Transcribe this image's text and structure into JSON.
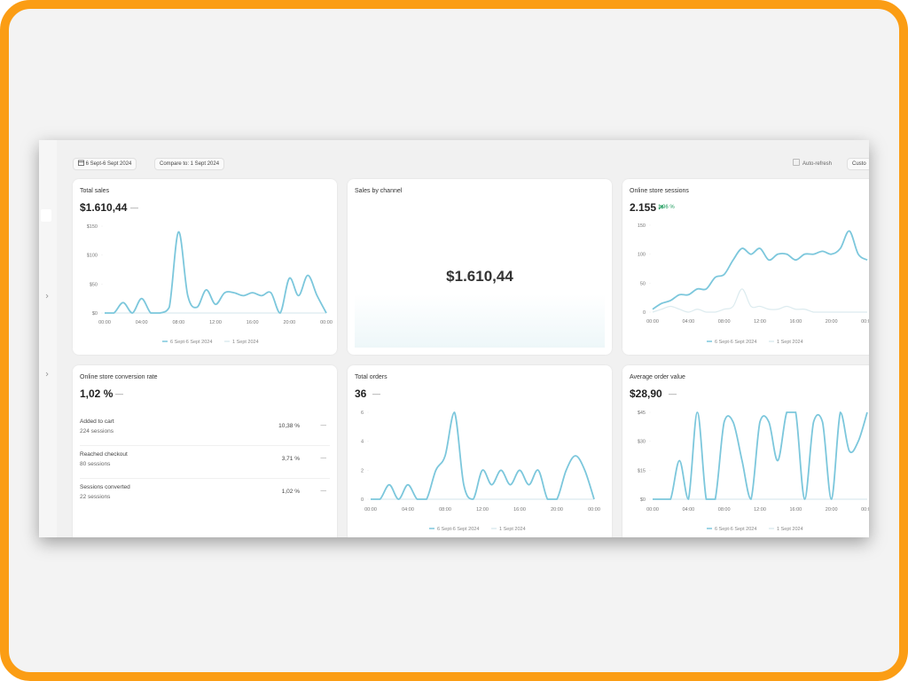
{
  "toolbar": {
    "date_range": "6 Sept-6 Sept 2024",
    "compare": "Compare to: 1 Sept 2024",
    "auto_refresh": "Auto-refresh",
    "custom": "Custo"
  },
  "cards": [
    {
      "title": "Total sales",
      "value": "$1.610,44",
      "delta": "—",
      "chart": {
        "type": "line",
        "x": [
          0,
          1,
          2,
          3,
          4,
          5,
          6,
          7,
          8,
          9,
          10,
          11,
          12,
          13,
          14,
          15,
          16,
          17,
          18,
          19,
          20,
          21,
          22,
          23,
          24
        ],
        "xlim": [
          0,
          24
        ],
        "xticks": [
          {
            "value": 0,
            "label": "00:00"
          },
          {
            "value": 4,
            "label": "04:00"
          },
          {
            "value": 8,
            "label": "08:00"
          },
          {
            "value": 12,
            "label": "12:00"
          },
          {
            "value": 16,
            "label": "16:00"
          },
          {
            "value": 20,
            "label": "20:00"
          },
          {
            "value": 24,
            "label": "00:00"
          }
        ],
        "ylim": [
          0,
          150
        ],
        "yticks": [
          {
            "value": 0,
            "label": "$0"
          },
          {
            "value": 50,
            "label": "$50"
          },
          {
            "value": 100,
            "label": "$100"
          },
          {
            "value": 150,
            "label": "$150"
          }
        ],
        "series": [
          {
            "name": "1 Sept 2024",
            "color": "#dcebef",
            "values": [
              0,
              0,
              0,
              0,
              0,
              0,
              0,
              0,
              0,
              0,
              0,
              0,
              0,
              0,
              0,
              0,
              0,
              0,
              0,
              0,
              0,
              0,
              0,
              0,
              0
            ]
          },
          {
            "name": "6 Sept-6 Sept 2024",
            "color": "#7cc7dc",
            "values": [
              0,
              0,
              18,
              0,
              25,
              0,
              0,
              10,
              140,
              30,
              10,
              40,
              15,
              35,
              35,
              30,
              35,
              30,
              35,
              0,
              60,
              30,
              65,
              30,
              0
            ]
          }
        ]
      }
    },
    {
      "title": "Sales by channel",
      "value": "$1.610,44"
    },
    {
      "title": "Online store sessions",
      "value": "2.155",
      "change": "1,96 %",
      "chart": {
        "type": "line",
        "x": [
          0,
          1,
          2,
          3,
          4,
          5,
          6,
          7,
          8,
          9,
          10,
          11,
          12,
          13,
          14,
          15,
          16,
          17,
          18,
          19,
          20,
          21,
          22,
          23,
          24
        ],
        "xlim": [
          0,
          24
        ],
        "xticks": [
          {
            "value": 0,
            "label": "00:00"
          },
          {
            "value": 4,
            "label": "04:00"
          },
          {
            "value": 8,
            "label": "08:00"
          },
          {
            "value": 12,
            "label": "12:00"
          },
          {
            "value": 16,
            "label": "16:00"
          },
          {
            "value": 20,
            "label": "20:00"
          },
          {
            "value": 24,
            "label": "00:00"
          }
        ],
        "ylim": [
          0,
          150
        ],
        "yticks": [
          0,
          50,
          100,
          150
        ],
        "series": [
          {
            "name": "1 Sept 2024",
            "color": "#dcebef",
            "values": [
              0,
              5,
              10,
              5,
              0,
              5,
              0,
              0,
              5,
              10,
              40,
              10,
              10,
              5,
              5,
              10,
              5,
              5,
              0,
              0,
              0,
              0,
              0,
              0,
              0
            ]
          },
          {
            "name": "6 Sept-6 Sept 2024",
            "color": "#7cc7dc",
            "values": [
              5,
              15,
              20,
              30,
              30,
              40,
              40,
              60,
              65,
              90,
              110,
              100,
              110,
              90,
              100,
              100,
              90,
              100,
              100,
              105,
              100,
              110,
              140,
              100,
              90
            ]
          }
        ]
      }
    },
    {
      "title": "Online store conversion rate",
      "value": "1,02 %",
      "delta": "—",
      "rows": [
        {
          "label": "Added to cart",
          "sessions": "224 sessions",
          "rate": "10,38 %",
          "delta": "—"
        },
        {
          "label": "Reached checkout",
          "sessions": "80 sessions",
          "rate": "3,71 %",
          "delta": "—"
        },
        {
          "label": "Sessions converted",
          "sessions": "22 sessions",
          "rate": "1,02 %",
          "delta": "—"
        }
      ]
    },
    {
      "title": "Total orders",
      "value": "36",
      "delta": "—",
      "chart": {
        "type": "line",
        "x": [
          0,
          1,
          2,
          3,
          4,
          5,
          6,
          7,
          8,
          9,
          10,
          11,
          12,
          13,
          14,
          15,
          16,
          17,
          18,
          19,
          20,
          21,
          22,
          23,
          24
        ],
        "xlim": [
          0,
          24
        ],
        "xticks": [
          {
            "value": 0,
            "label": "00:00"
          },
          {
            "value": 4,
            "label": "04:00"
          },
          {
            "value": 8,
            "label": "08:00"
          },
          {
            "value": 12,
            "label": "12:00"
          },
          {
            "value": 16,
            "label": "16:00"
          },
          {
            "value": 20,
            "label": "20:00"
          },
          {
            "value": 24,
            "label": "00:00"
          }
        ],
        "ylim": [
          0,
          6
        ],
        "yticks": [
          0,
          2,
          4,
          6
        ],
        "series": [
          {
            "name": "1 Sept 2024",
            "color": "#dcebef",
            "values": [
              0,
              0,
              0,
              0,
              0,
              0,
              0,
              0,
              0,
              0,
              0,
              0,
              0,
              0,
              0,
              0,
              0,
              0,
              0,
              0,
              0,
              0,
              0,
              0,
              0
            ]
          },
          {
            "name": "6 Sept-6 Sept 2024",
            "color": "#7cc7dc",
            "values": [
              0,
              0,
              1,
              0,
              1,
              0,
              0,
              2,
              3,
              6,
              1,
              0,
              2,
              1,
              2,
              1,
              2,
              1,
              2,
              0,
              0,
              2,
              3,
              2,
              0
            ]
          }
        ]
      }
    },
    {
      "title": "Average order value",
      "value": "$28,90",
      "delta": "—",
      "chart": {
        "type": "line",
        "x": [
          0,
          1,
          2,
          3,
          4,
          5,
          6,
          7,
          8,
          9,
          10,
          11,
          12,
          13,
          14,
          15,
          16,
          17,
          18,
          19,
          20,
          21,
          22,
          23,
          24
        ],
        "xlim": [
          0,
          24
        ],
        "xticks": [
          {
            "value": 0,
            "label": "00:00"
          },
          {
            "value": 4,
            "label": "04:00"
          },
          {
            "value": 8,
            "label": "08:00"
          },
          {
            "value": 12,
            "label": "12:00"
          },
          {
            "value": 16,
            "label": "16:00"
          },
          {
            "value": 20,
            "label": "20:00"
          },
          {
            "value": 24,
            "label": "00:00"
          }
        ],
        "ylim": [
          0,
          45
        ],
        "yticks": [
          {
            "value": 0,
            "label": "$0"
          },
          {
            "value": 15,
            "label": "$15"
          },
          {
            "value": 30,
            "label": "$30"
          },
          {
            "value": 45,
            "label": "$45"
          }
        ],
        "series": [
          {
            "name": "1 Sept 2024",
            "color": "#dcebef",
            "values": [
              0,
              0,
              0,
              0,
              0,
              0,
              0,
              0,
              0,
              0,
              0,
              0,
              0,
              0,
              0,
              0,
              0,
              0,
              0,
              0,
              0,
              0,
              0,
              0,
              0
            ]
          },
          {
            "name": "6 Sept-6 Sept 2024",
            "color": "#7cc7dc",
            "values": [
              0,
              0,
              0,
              20,
              0,
              45,
              0,
              0,
              40,
              40,
              20,
              0,
              40,
              40,
              20,
              45,
              45,
              0,
              40,
              40,
              0,
              45,
              25,
              30,
              45
            ]
          }
        ]
      }
    }
  ]
}
